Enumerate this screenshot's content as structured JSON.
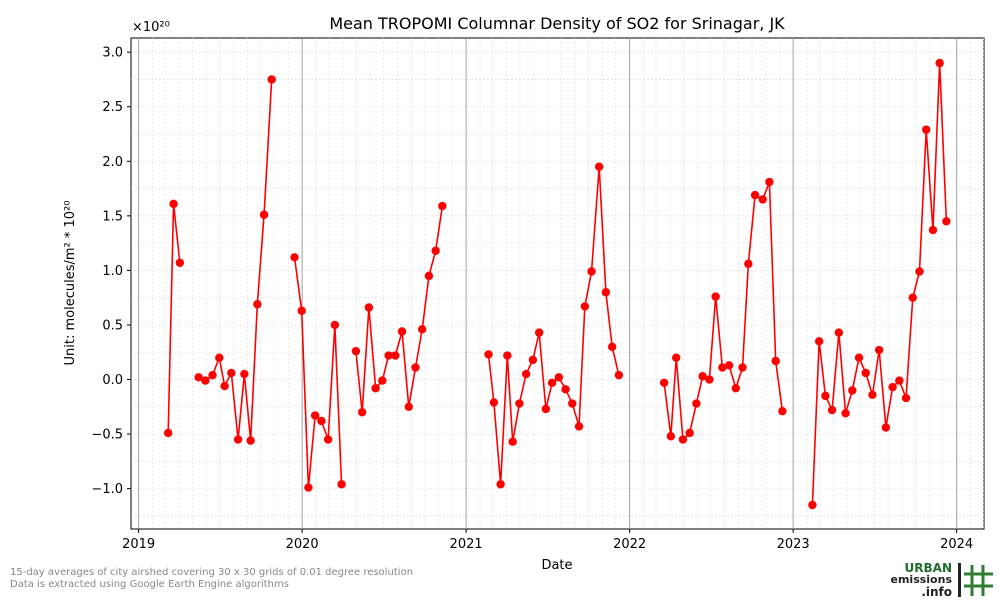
{
  "chart_data": {
    "type": "line",
    "title": "Mean TROPOMI Columnar Density of SO2 for Srinagar, JK",
    "xlabel": "Date",
    "ylabel": "Unit: molecules/m² * 10²⁰",
    "scale_label": "×10²⁰",
    "xlim": [
      "2018-12-15",
      "2024-03-02"
    ],
    "ylim": [
      -1.37,
      3.13
    ],
    "x_ticks": [
      {
        "date": "2019-01-01",
        "label": "2019"
      },
      {
        "date": "2020-01-01",
        "label": "2020"
      },
      {
        "date": "2021-01-01",
        "label": "2021"
      },
      {
        "date": "2022-01-01",
        "label": "2022"
      },
      {
        "date": "2023-01-01",
        "label": "2023"
      },
      {
        "date": "2024-01-01",
        "label": "2024"
      }
    ],
    "y_ticks": [
      -1.0,
      -0.5,
      0.0,
      0.5,
      1.0,
      1.5,
      2.0,
      2.5,
      3.0
    ],
    "grid": true,
    "color": "#ff0000",
    "series": [
      {
        "values": [
          [
            "2019-03-08",
            -0.49
          ],
          [
            "2019-03-20",
            1.61
          ],
          [
            "2019-04-03",
            1.07
          ],
          null,
          [
            "2019-05-15",
            0.02
          ],
          [
            "2019-05-30",
            -0.01
          ],
          [
            "2019-06-15",
            0.04
          ],
          [
            "2019-06-30",
            0.2
          ],
          [
            "2019-07-12",
            -0.06
          ],
          [
            "2019-07-27",
            0.06
          ],
          [
            "2019-08-11",
            -0.55
          ],
          [
            "2019-08-25",
            0.05
          ],
          [
            "2019-09-08",
            -0.56
          ],
          [
            "2019-09-23",
            0.69
          ],
          [
            "2019-10-08",
            1.51
          ],
          [
            "2019-10-25",
            2.75
          ],
          null,
          [
            "2019-12-15",
            1.12
          ],
          [
            "2019-12-31",
            0.63
          ],
          [
            "2020-01-15",
            -0.99
          ],
          [
            "2020-01-30",
            -0.33
          ],
          [
            "2020-02-13",
            -0.38
          ],
          [
            "2020-02-28",
            -0.55
          ],
          [
            "2020-03-14",
            0.5
          ],
          [
            "2020-03-29",
            -0.96
          ],
          null,
          [
            "2020-04-30",
            0.26
          ],
          [
            "2020-05-14",
            -0.3
          ],
          [
            "2020-05-29",
            0.66
          ],
          [
            "2020-06-13",
            -0.08
          ],
          [
            "2020-06-28",
            -0.01
          ],
          [
            "2020-07-12",
            0.22
          ],
          [
            "2020-07-27",
            0.22
          ],
          [
            "2020-08-11",
            0.44
          ],
          [
            "2020-08-26",
            -0.25
          ],
          [
            "2020-09-10",
            0.11
          ],
          [
            "2020-09-25",
            0.46
          ],
          [
            "2020-10-10",
            0.95
          ],
          [
            "2020-10-25",
            1.18
          ],
          [
            "2020-11-09",
            1.59
          ],
          null,
          [
            "2021-02-20",
            0.23
          ],
          [
            "2021-03-04",
            -0.21
          ],
          [
            "2021-03-19",
            -0.96
          ],
          [
            "2021-04-03",
            0.22
          ],
          [
            "2021-04-15",
            -0.57
          ],
          [
            "2021-04-30",
            -0.22
          ],
          [
            "2021-05-15",
            0.05
          ],
          [
            "2021-05-30",
            0.18
          ],
          [
            "2021-06-13",
            0.43
          ],
          [
            "2021-06-28",
            -0.27
          ],
          [
            "2021-07-12",
            -0.03
          ],
          [
            "2021-07-27",
            0.02
          ],
          [
            "2021-08-11",
            -0.09
          ],
          [
            "2021-08-26",
            -0.22
          ],
          [
            "2021-09-10",
            -0.43
          ],
          [
            "2021-09-23",
            0.67
          ],
          [
            "2021-10-08",
            0.99
          ],
          [
            "2021-10-25",
            1.95
          ],
          [
            "2021-11-09",
            0.8
          ],
          [
            "2021-11-23",
            0.3
          ],
          [
            "2021-12-08",
            0.04
          ],
          null,
          [
            "2022-03-19",
            -0.03
          ],
          [
            "2022-04-03",
            -0.52
          ],
          [
            "2022-04-15",
            0.2
          ],
          [
            "2022-04-30",
            -0.55
          ],
          [
            "2022-05-15",
            -0.49
          ],
          [
            "2022-05-30",
            -0.22
          ],
          [
            "2022-06-13",
            0.03
          ],
          [
            "2022-06-28",
            0.0
          ],
          [
            "2022-07-12",
            0.76
          ],
          [
            "2022-07-27",
            0.11
          ],
          [
            "2022-08-11",
            0.13
          ],
          [
            "2022-08-26",
            -0.08
          ],
          [
            "2022-09-10",
            0.11
          ],
          [
            "2022-09-23",
            1.06
          ],
          [
            "2022-10-08",
            1.69
          ],
          [
            "2022-10-25",
            1.65
          ],
          [
            "2022-11-09",
            1.81
          ],
          [
            "2022-11-23",
            0.17
          ],
          [
            "2022-12-08",
            -0.29
          ],
          null,
          [
            "2023-02-13",
            -1.15
          ],
          [
            "2023-02-28",
            0.35
          ],
          [
            "2023-03-14",
            -0.15
          ],
          [
            "2023-03-29",
            -0.28
          ],
          [
            "2023-04-13",
            0.43
          ],
          [
            "2023-04-28",
            -0.31
          ],
          [
            "2023-05-13",
            -0.1
          ],
          [
            "2023-05-28",
            0.2
          ],
          [
            "2023-06-12",
            0.06
          ],
          [
            "2023-06-27",
            -0.14
          ],
          [
            "2023-07-12",
            0.27
          ],
          [
            "2023-07-27",
            -0.44
          ],
          [
            "2023-08-11",
            -0.07
          ],
          [
            "2023-08-26",
            -0.01
          ],
          [
            "2023-09-10",
            -0.17
          ],
          [
            "2023-09-25",
            0.75
          ],
          [
            "2023-10-10",
            0.99
          ],
          [
            "2023-10-25",
            2.29
          ],
          [
            "2023-11-09",
            1.37
          ],
          [
            "2023-11-24",
            2.9
          ],
          [
            "2023-12-09",
            1.45
          ]
        ]
      }
    ]
  },
  "footnotes": {
    "line1": "15-day averages of city airshed covering 30 x 30 grids of 0.01 degree resolution",
    "line2": "Data is extracted using Google Earth Engine algorithms"
  },
  "logo": {
    "line1": "URBAN",
    "line2": "emissions",
    "line3": ".info",
    "icon": "hash-grid-icon",
    "colors": {
      "text": "#1f6b2e",
      "dark": "#222222",
      "accent": "#2e7d32"
    }
  }
}
